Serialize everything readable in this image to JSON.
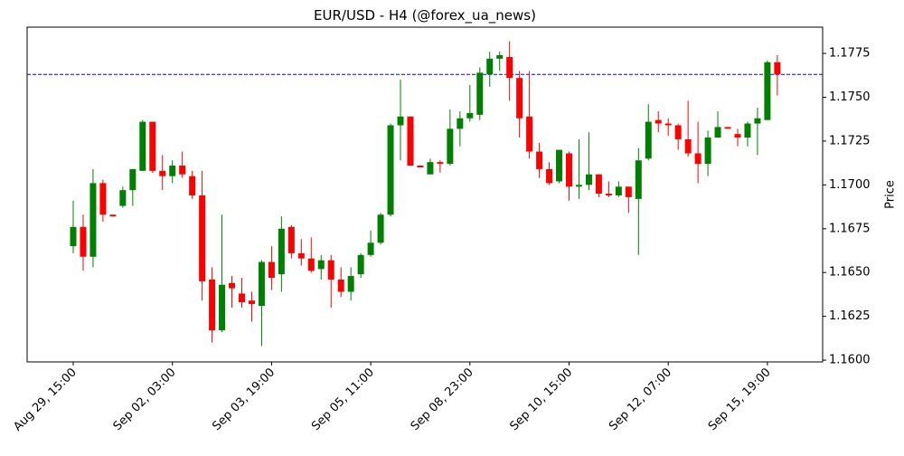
{
  "chart_data": {
    "type": "candlestick",
    "title": "EUR/USD - H4 (@forex_ua_news)",
    "y_label": "Price",
    "categories": [
      "Aug 29, 15:00",
      null,
      null,
      null,
      null,
      null,
      null,
      null,
      null,
      null,
      "Sep 02, 03:00",
      null,
      null,
      null,
      null,
      null,
      null,
      null,
      null,
      null,
      "Sep 03, 19:00",
      null,
      null,
      null,
      null,
      null,
      null,
      null,
      null,
      null,
      "Sep 05, 11:00",
      null,
      null,
      null,
      null,
      null,
      null,
      null,
      null,
      null,
      "Sep 08, 23:00",
      null,
      null,
      null,
      null,
      null,
      null,
      null,
      null,
      null,
      "Sep 10, 15:00",
      null,
      null,
      null,
      null,
      null,
      null,
      null,
      null,
      null,
      "Sep 12, 07:00",
      null,
      null,
      null,
      null,
      null,
      null,
      null,
      null,
      null,
      "Sep 15, 19:00",
      null
    ],
    "open": [
      1.1665,
      1.1676,
      1.1659,
      1.1701,
      1.1683,
      1.1688,
      1.1697,
      1.1708,
      1.1736,
      1.1708,
      1.1705,
      1.1711,
      1.1705,
      1.1694,
      1.1646,
      1.1617,
      1.1644,
      1.1638,
      1.1634,
      1.1631,
      1.1656,
      1.1649,
      1.1676,
      1.1661,
      1.1658,
      1.1652,
      1.1657,
      1.1646,
      1.1639,
      1.1649,
      1.166,
      1.1667,
      1.1683,
      1.1734,
      1.1739,
      1.1711,
      1.1706,
      1.1713,
      1.1712,
      1.1732,
      1.1738,
      1.174,
      1.1763,
      1.1772,
      1.1773,
      1.1761,
      1.1739,
      1.1719,
      1.1709,
      1.1702,
      1.1718,
      1.1699,
      1.17,
      1.1706,
      1.1695,
      1.1694,
      1.1699,
      1.1692,
      1.1715,
      1.1737,
      1.1735,
      1.1734,
      1.1726,
      1.1718,
      1.1712,
      1.1727,
      1.1733,
      1.1729,
      1.1727,
      1.1735,
      1.1737,
      1.177
    ],
    "high": [
      1.1691,
      1.1683,
      1.1709,
      1.1703,
      1.1683,
      1.1699,
      1.1709,
      1.1737,
      1.1736,
      1.1717,
      1.1714,
      1.1719,
      1.1708,
      1.1708,
      1.1653,
      1.1683,
      1.1648,
      1.1647,
      1.1639,
      1.1657,
      1.1665,
      1.1682,
      1.1677,
      1.1669,
      1.167,
      1.166,
      1.166,
      1.1653,
      1.1653,
      1.1661,
      1.1674,
      1.1684,
      1.1735,
      1.176,
      1.1739,
      1.1711,
      1.1715,
      1.1714,
      1.1743,
      1.1742,
      1.1757,
      1.1767,
      1.1776,
      1.1776,
      1.1782,
      1.1765,
      1.1765,
      1.1724,
      1.1713,
      1.172,
      1.1719,
      1.1726,
      1.173,
      1.1706,
      1.1702,
      1.1702,
      1.1699,
      1.1721,
      1.1746,
      1.1742,
      1.1738,
      1.1735,
      1.1748,
      1.1736,
      1.1731,
      1.1742,
      1.1733,
      1.1732,
      1.1736,
      1.1744,
      1.1771,
      1.1774
    ],
    "low": [
      1.1661,
      1.1651,
      1.1653,
      1.1679,
      1.1682,
      1.1687,
      1.1688,
      1.1708,
      1.1707,
      1.1697,
      1.1701,
      1.1704,
      1.1692,
      1.1634,
      1.161,
      1.1616,
      1.163,
      1.163,
      1.1622,
      1.1608,
      1.164,
      1.1639,
      1.1658,
      1.1654,
      1.165,
      1.1646,
      1.163,
      1.1636,
      1.1634,
      1.1647,
      1.1659,
      1.1666,
      1.1682,
      1.1714,
      1.1711,
      1.171,
      1.1706,
      1.1707,
      1.1711,
      1.1722,
      1.1736,
      1.1737,
      1.1756,
      1.1765,
      1.1748,
      1.1727,
      1.1715,
      1.1704,
      1.17,
      1.1701,
      1.1691,
      1.1692,
      1.1697,
      1.1693,
      1.1693,
      1.1693,
      1.1684,
      1.166,
      1.1714,
      1.173,
      1.1728,
      1.172,
      1.1716,
      1.1701,
      1.1705,
      1.1727,
      1.1732,
      1.1722,
      1.1722,
      1.1717,
      1.1737,
      1.1751
    ],
    "close": [
      1.1676,
      1.1659,
      1.1701,
      1.1683,
      1.1682,
      1.1697,
      1.1709,
      1.1736,
      1.1708,
      1.1705,
      1.1711,
      1.1706,
      1.1694,
      1.1645,
      1.1617,
      1.1643,
      1.1641,
      1.1633,
      1.1632,
      1.1656,
      1.1647,
      1.1675,
      1.1661,
      1.1658,
      1.1651,
      1.1657,
      1.1646,
      1.1639,
      1.1648,
      1.166,
      1.1667,
      1.1683,
      1.1734,
      1.1739,
      1.1711,
      1.171,
      1.1713,
      1.1712,
      1.1732,
      1.1738,
      1.1741,
      1.1764,
      1.1772,
      1.1774,
      1.1761,
      1.1738,
      1.1719,
      1.1709,
      1.1701,
      1.172,
      1.1699,
      1.17,
      1.1706,
      1.1695,
      1.1694,
      1.1699,
      1.1693,
      1.1714,
      1.1736,
      1.1735,
      1.1734,
      1.1726,
      1.1718,
      1.1712,
      1.1727,
      1.1733,
      1.1732,
      1.1727,
      1.1735,
      1.1738,
      1.177,
      1.1763
    ],
    "up_color": "#008000",
    "down_color": "#ff0000",
    "hline": {
      "value": 1.1763,
      "color": "#0000ff"
    },
    "ylim": [
      1.1599,
      1.179
    ],
    "yticks": [
      {
        "value": 1.16,
        "label": "1.1600"
      },
      {
        "value": 1.1625,
        "label": "1.1625"
      },
      {
        "value": 1.165,
        "label": "1.1650"
      },
      {
        "value": 1.1675,
        "label": "1.1675"
      },
      {
        "value": 1.17,
        "label": "1.1700"
      },
      {
        "value": 1.1725,
        "label": "1.1725"
      },
      {
        "value": 1.175,
        "label": "1.1750"
      },
      {
        "value": 1.1775,
        "label": "1.1775"
      }
    ]
  }
}
